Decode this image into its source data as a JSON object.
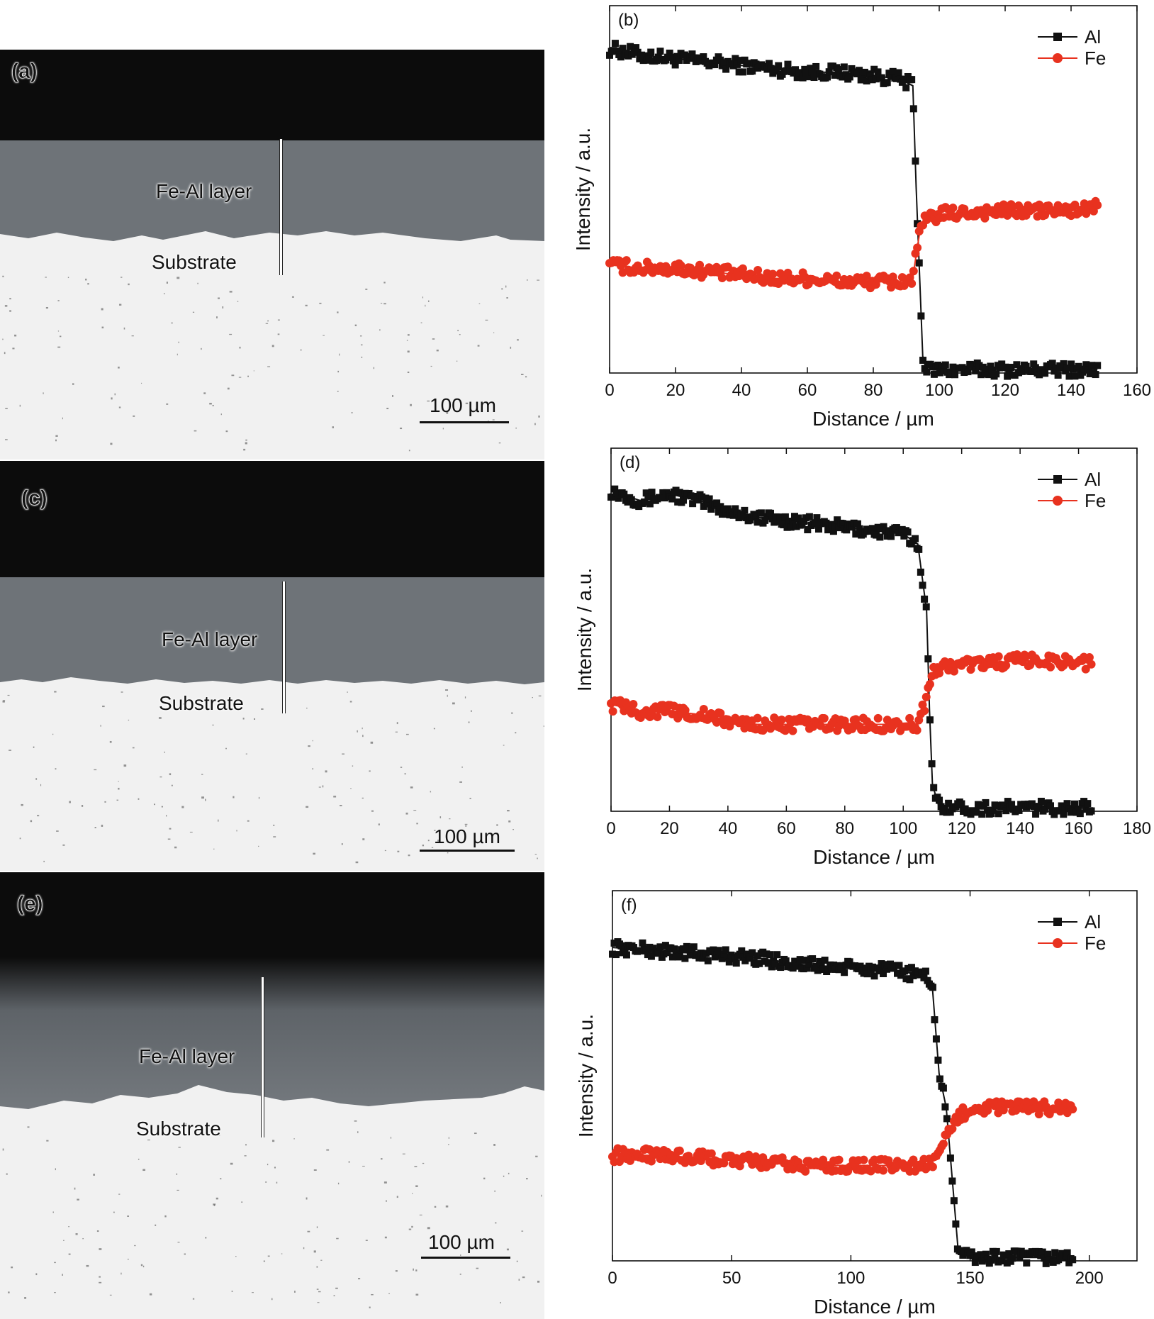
{
  "micrographs": [
    {
      "id": "a",
      "panel_label": "(a)",
      "layer_label": "Fe-Al layer",
      "substrate_label": "Substrate",
      "scale_label": "100 µm"
    },
    {
      "id": "c",
      "panel_label": "(c)",
      "layer_label": "Fe-Al layer",
      "substrate_label": "Substrate",
      "scale_label": "100 µm"
    },
    {
      "id": "e",
      "panel_label": "(e)",
      "layer_label": "Fe-Al layer",
      "substrate_label": "Substrate",
      "scale_label": "100 µm"
    }
  ],
  "colors": {
    "al": "#111111",
    "fe": "#e8321f",
    "coating": "#6e7378",
    "substrate": "#f1f1f1",
    "background": "#0c0c0c"
  },
  "chart_data": [
    {
      "type": "scatter",
      "panel_label": "(b)",
      "xlabel": "Distance / µm",
      "ylabel": "Intensity / a.u.",
      "xlim": [
        0,
        160
      ],
      "xticks": [
        0,
        20,
        40,
        60,
        80,
        100,
        120,
        140,
        160
      ],
      "ylim": [
        0,
        100
      ],
      "legend_position": "top-right",
      "series": [
        {
          "name": "Al",
          "marker": "square",
          "x": [
            0,
            10,
            20,
            30,
            40,
            50,
            60,
            70,
            80,
            88,
            92,
            93,
            94,
            95,
            96,
            100,
            120,
            140,
            148
          ],
          "y": [
            96,
            94,
            93,
            92,
            91,
            90,
            89,
            89,
            88,
            87,
            85,
            55,
            30,
            5,
            1,
            1,
            1,
            1,
            1
          ]
        },
        {
          "name": "Fe",
          "marker": "circle",
          "x": [
            0,
            10,
            20,
            30,
            40,
            50,
            60,
            70,
            80,
            88,
            92,
            93,
            94,
            95,
            96,
            100,
            120,
            140,
            148
          ],
          "y": [
            32,
            31,
            31,
            30,
            29,
            28,
            28,
            27,
            27,
            27,
            28,
            35,
            41,
            44,
            45,
            47,
            48,
            48,
            49
          ]
        }
      ]
    },
    {
      "type": "scatter",
      "panel_label": "(d)",
      "xlabel": "Distance / µm",
      "ylabel": "Intensity / a.u.",
      "xlim": [
        0,
        180
      ],
      "xticks": [
        0,
        20,
        40,
        60,
        80,
        100,
        120,
        140,
        160,
        180
      ],
      "ylim": [
        0,
        100
      ],
      "legend_position": "top-right",
      "series": [
        {
          "name": "Al",
          "marker": "square",
          "x": [
            0,
            10,
            20,
            30,
            40,
            50,
            60,
            70,
            80,
            90,
            100,
            105,
            108,
            109,
            110,
            112,
            120,
            140,
            160,
            165
          ],
          "y": [
            96,
            93,
            95,
            93,
            90,
            88,
            87,
            86,
            85,
            84,
            83,
            80,
            60,
            30,
            8,
            2,
            1,
            1,
            1,
            1
          ]
        },
        {
          "name": "Fe",
          "marker": "circle",
          "x": [
            0,
            10,
            20,
            30,
            40,
            50,
            60,
            70,
            80,
            90,
            100,
            105,
            108,
            110,
            112,
            120,
            140,
            160,
            165
          ],
          "y": [
            32,
            30,
            30,
            29,
            27,
            26,
            26,
            26,
            26,
            26,
            26,
            26,
            34,
            41,
            43,
            44,
            45,
            45,
            44
          ]
        }
      ]
    },
    {
      "type": "scatter",
      "panel_label": "(f)",
      "xlabel": "Distance / µm",
      "ylabel": "Intensity / a.u.",
      "xlim": [
        0,
        220
      ],
      "xticks": [
        0,
        50,
        100,
        150,
        200
      ],
      "ylim": [
        0,
        100
      ],
      "legend_position": "top-right",
      "series": [
        {
          "name": "Al",
          "marker": "square",
          "x": [
            0,
            20,
            40,
            60,
            80,
            100,
            120,
            130,
            134,
            137,
            140,
            143,
            145,
            150,
            170,
            193
          ],
          "y": [
            92,
            91,
            90,
            89,
            87,
            86,
            85,
            84,
            82,
            55,
            45,
            20,
            3,
            1,
            1,
            1
          ]
        },
        {
          "name": "Fe",
          "marker": "circle",
          "x": [
            0,
            20,
            40,
            60,
            80,
            100,
            120,
            130,
            137,
            140,
            143,
            145,
            150,
            170,
            193
          ],
          "y": [
            31,
            31,
            30,
            29,
            28,
            28,
            28,
            28,
            30,
            36,
            40,
            42,
            45,
            45,
            45
          ]
        }
      ]
    }
  ]
}
